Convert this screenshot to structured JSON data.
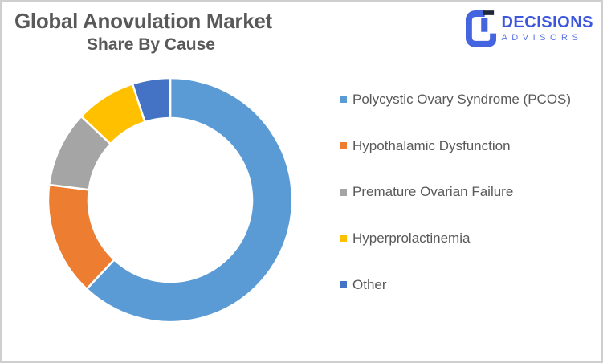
{
  "header": {
    "title_line1": "Global Anovulation Market",
    "title_line2": "Share By Cause",
    "title_color": "#595959"
  },
  "logo": {
    "name": "DECISIONS",
    "subtitle": "ADVISORS",
    "wordmark_color": "#3d56de",
    "subtitle_color": "#5b74e8",
    "mark_blue_color": "#4565e0",
    "mark_dark_color": "#1e2838"
  },
  "chart_data": {
    "type": "pie",
    "subtype": "donut",
    "title": "Global Anovulation Market Share By Cause",
    "categories": [
      "Polycystic Ovary Syndrome (PCOS)",
      "Hypothalamic Dysfunction",
      "Premature Ovarian Failure",
      "Hyperprolactinemia",
      "Other"
    ],
    "values": [
      62,
      15,
      10,
      8,
      5
    ],
    "unit": "percent",
    "colors": [
      "#5B9BD5",
      "#ED7D31",
      "#A5A5A5",
      "#FFC000",
      "#4472C4"
    ],
    "start_angle_deg": 0,
    "direction": "clockwise",
    "hole_ratio": 0.67,
    "segment_border_color": "#FFFFFF",
    "legend_position": "right",
    "data_labels": false
  },
  "legend": {
    "items": [
      {
        "label": "Polycystic Ovary Syndrome (PCOS)",
        "color": "#5B9BD5"
      },
      {
        "label": "Hypothalamic Dysfunction",
        "color": "#ED7D31"
      },
      {
        "label": "Premature Ovarian Failure",
        "color": "#A5A5A5"
      },
      {
        "label": "Hyperprolactinemia",
        "color": "#FFC000"
      },
      {
        "label": "Other",
        "color": "#4472C4"
      }
    ]
  }
}
